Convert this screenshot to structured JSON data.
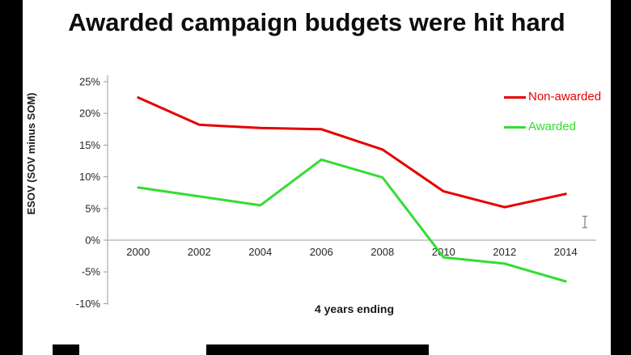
{
  "window": {
    "background": "#000000"
  },
  "slide": {
    "title": "Awarded campaign budgets were hit hard"
  },
  "chart_data": {
    "type": "line",
    "title": "Awarded campaign budgets were hit hard",
    "xlabel": "4 years ending",
    "ylabel": "ESOV (SOV minus SOM)",
    "x_categories": [
      "2000",
      "2002",
      "2004",
      "2006",
      "2008",
      "2010",
      "2012",
      "2014"
    ],
    "series": [
      {
        "name": "Non-awarded",
        "color": "#e60000",
        "values": [
          22.5,
          18.2,
          17.7,
          17.5,
          14.3,
          7.7,
          5.2,
          7.3
        ]
      },
      {
        "name": "Awarded",
        "color": "#33dd33",
        "values": [
          8.3,
          6.9,
          5.5,
          12.7,
          9.9,
          -2.7,
          -3.7,
          -6.5
        ]
      }
    ],
    "ylim": [
      -10,
      25
    ],
    "y_ticks": [
      {
        "value": 25,
        "label": "25%"
      },
      {
        "value": 20,
        "label": "20%"
      },
      {
        "value": 15,
        "label": "15%"
      },
      {
        "value": 10,
        "label": "10%"
      },
      {
        "value": 5,
        "label": "5%"
      },
      {
        "value": 0,
        "label": "0%"
      },
      {
        "value": -5,
        "label": "-5%"
      },
      {
        "value": -10,
        "label": "-10%"
      }
    ],
    "grid": false,
    "legend_position": "top-right"
  }
}
